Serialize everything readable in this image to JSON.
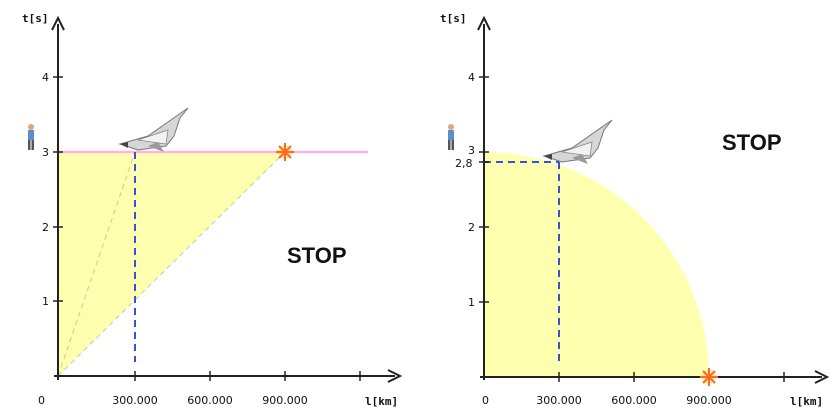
{
  "colors": {
    "fill": "#ffffb0",
    "pink_line": "#ffb3e6",
    "blue_dash": "#3a4fd8",
    "burst": "#ff6a1a"
  },
  "icons": [
    "person-icon",
    "shuttle-icon",
    "burst-icon"
  ],
  "left_panel": {
    "y_axis_label": "t[s]",
    "x_axis_label": "l[km]",
    "origin_label": "0",
    "y_ticks": [
      "1",
      "2",
      "3",
      "4"
    ],
    "x_ticks": [
      "300.000",
      "600.000",
      "900.000"
    ],
    "stop_label": "STOP",
    "shuttle_at": {
      "x": 300000,
      "t": 3
    },
    "burst_at": {
      "x": 900000,
      "t": 3
    }
  },
  "right_panel": {
    "y_axis_label": "t[s]",
    "x_axis_label": "l[km]",
    "origin_label": "0",
    "y_ticks": [
      "1",
      "2",
      "3",
      "4"
    ],
    "extra_y_tick": "2,8",
    "x_ticks": [
      "300.000",
      "600.000",
      "900.000"
    ],
    "stop_label": "STOP",
    "shuttle_at": {
      "x": 300000,
      "t": 2.8
    },
    "burst_at": {
      "x": 900000,
      "t": 0
    }
  }
}
